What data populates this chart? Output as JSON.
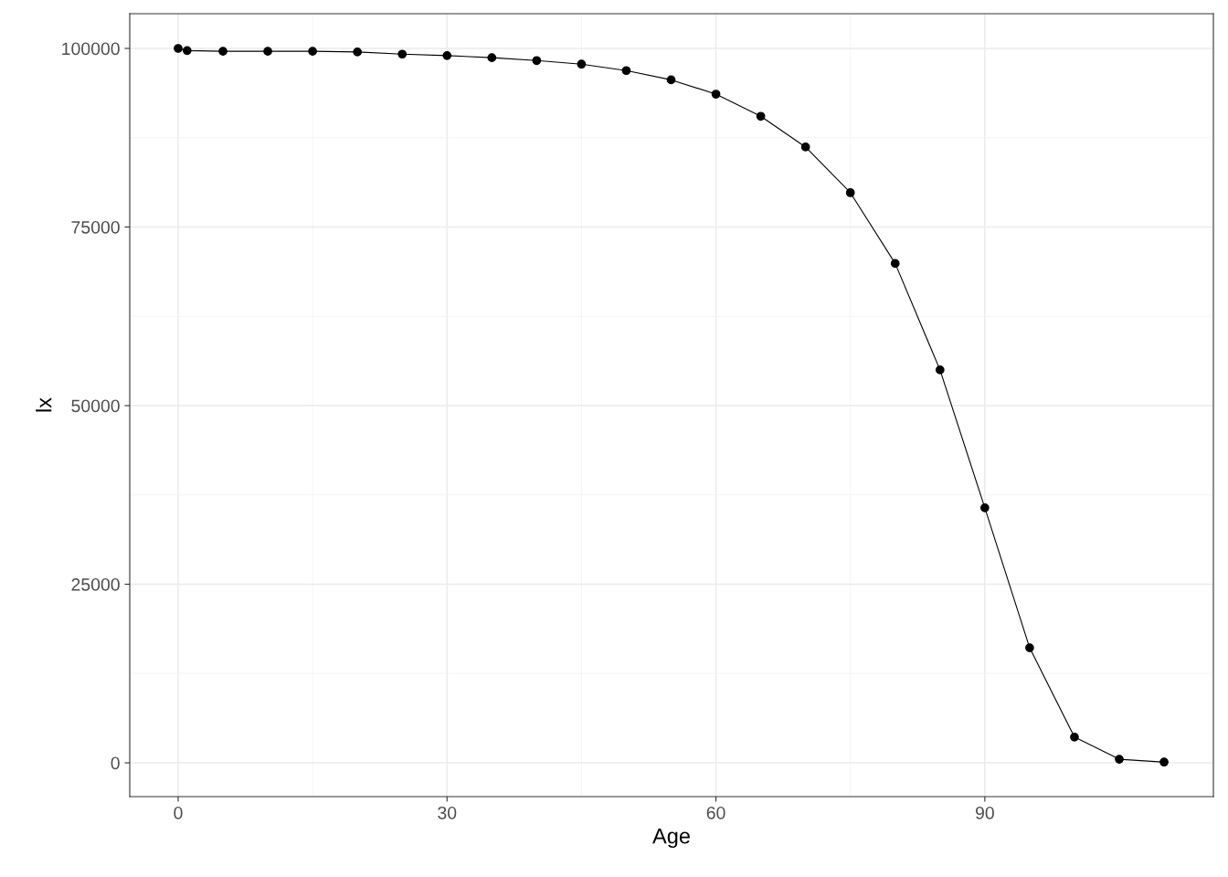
{
  "chart_data": {
    "type": "line",
    "xlabel": "Age",
    "ylabel": "lx",
    "x": [
      0,
      1,
      5,
      10,
      15,
      20,
      25,
      30,
      35,
      40,
      45,
      50,
      55,
      60,
      65,
      70,
      75,
      80,
      85,
      90,
      95,
      100,
      105,
      110
    ],
    "series": [
      {
        "color": "#000000",
        "values": [
          100000,
          99700,
          99600,
          99600,
          99600,
          99500,
          99200,
          99000,
          98700,
          98300,
          97800,
          96900,
          95600,
          93600,
          90500,
          86200,
          79800,
          69900,
          55000,
          35700,
          16100,
          3600,
          500,
          100
        ]
      }
    ],
    "marker": "circle",
    "line_style": "solid",
    "grid": true,
    "xlim": [
      -5.4,
      115.5
    ],
    "xticks": [
      0,
      30,
      60,
      90
    ],
    "ylim": [
      -4730,
      104860
    ],
    "yticks": [
      0,
      25000,
      50000,
      75000,
      100000
    ]
  }
}
